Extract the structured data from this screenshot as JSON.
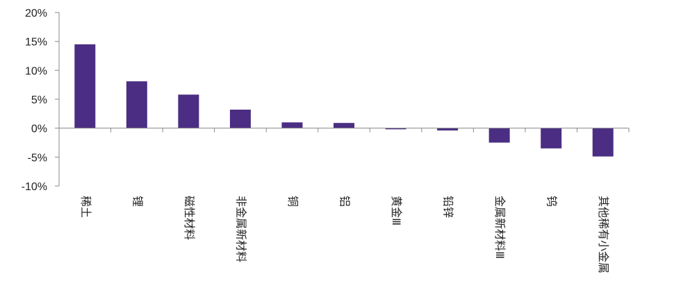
{
  "chart_data": {
    "type": "bar",
    "title": "",
    "xlabel": "",
    "ylabel": "",
    "categories": [
      "稀土",
      "锂",
      "磁性材料",
      "非金属新材料",
      "铜",
      "铝",
      "黄金Ⅲ",
      "铅锌",
      "金属新材料Ⅲ",
      "钨",
      "其他稀有小金属"
    ],
    "values": [
      14.5,
      8.1,
      5.8,
      3.2,
      1.0,
      0.9,
      -0.2,
      -0.4,
      -2.5,
      -3.5,
      -4.9
    ],
    "ylim": [
      -10,
      20
    ],
    "yticks": [
      20,
      15,
      10,
      5,
      0,
      -5,
      -10
    ],
    "ytick_labels": [
      "20%",
      "15%",
      "10%",
      "5%",
      "0%",
      "-5%",
      "-10%"
    ],
    "grid": false,
    "legend": "none",
    "bar_color": "#4b2e83"
  }
}
